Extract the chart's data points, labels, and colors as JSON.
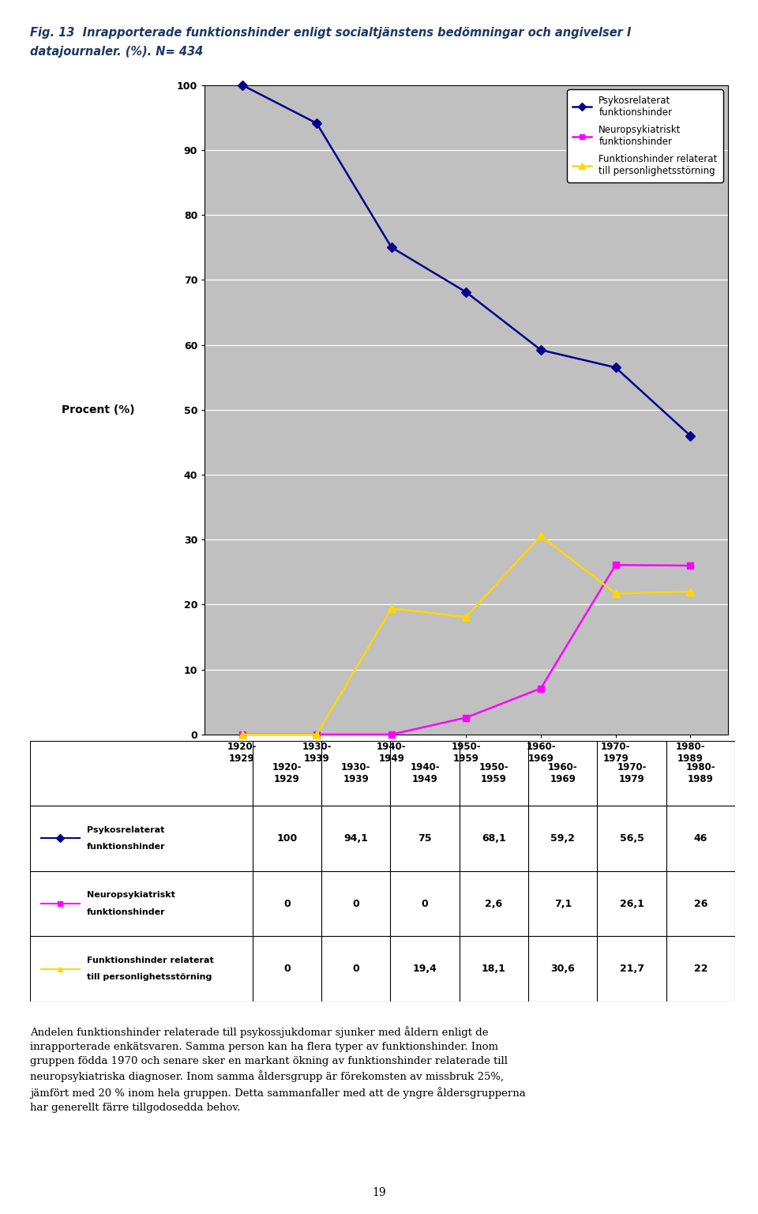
{
  "title_line1": "Fig. 13  Inrapporterade funktionshinder enligt socialtjänstens bedömningar och angivelser I",
  "title_line2": "datajournaler. (%). N= 434",
  "categories": [
    "1920-\n1929",
    "1930-\n1939",
    "1940-\n1949",
    "1950-\n1959",
    "1960-\n1969",
    "1970-\n1979",
    "1980-\n1989"
  ],
  "series1_label": "Psykosrelaterat\nfunktionshinder",
  "series2_label": "Neuropsykiatriskt\nfunktionshinder",
  "series3_label": "Funktionshinder relaterat\ntill personlighetsstörning",
  "series1_values": [
    100,
    94.1,
    75,
    68.1,
    59.2,
    56.5,
    46
  ],
  "series2_values": [
    0,
    0,
    0,
    2.6,
    7.1,
    26.1,
    26
  ],
  "series3_values": [
    0,
    0,
    19.4,
    18.1,
    30.6,
    21.7,
    22
  ],
  "series1_color": "#00008B",
  "series2_color": "#FF00FF",
  "series3_color": "#FFD700",
  "plot_bg_color": "#C0C0C0",
  "ylabel": "Procent (%)",
  "ylim": [
    0,
    100
  ],
  "yticks": [
    0,
    10,
    20,
    30,
    40,
    50,
    60,
    70,
    80,
    90,
    100
  ],
  "table_row1": [
    "100",
    "94,1",
    "75",
    "68,1",
    "59,2",
    "56,5",
    "46"
  ],
  "table_row2": [
    "0",
    "0",
    "0",
    "2,6",
    "7,1",
    "26,1",
    "26"
  ],
  "table_row3": [
    "0",
    "0",
    "19,4",
    "18,1",
    "30,6",
    "21,7",
    "22"
  ],
  "table_row1_label_line1": "→ Psykosrelaterat",
  "table_row1_label_line2": "     funktionshinder",
  "table_row2_label_line1": "→ Neuropsykiatriskt",
  "table_row2_label_line2": "     funktionshinder",
  "table_row3_label_line1": "→ Funktionshinder relaterat",
  "table_row3_label_line2": "     till personlighetsstörning",
  "body_text": "Andelen funktionshinder relaterade till psykossjukdomar sjunker med åldern enligt de inrapporterade enkätsvaren. Samma person kan ha flera typer av funktionshinder. Inom gruppen födda 1970 och senare sker en markant ökning av funktionshinder relaterade till neuropsykiatriska diagnoser. Inom samma åldersgrupp är förekomsten av missbruk 25%, jämfört med 20 % inom hela gruppen. Detta sammanfaller med att de yngre åldersgrupperna har generellt färre tillgodosedda behov.",
  "page_number": "19"
}
